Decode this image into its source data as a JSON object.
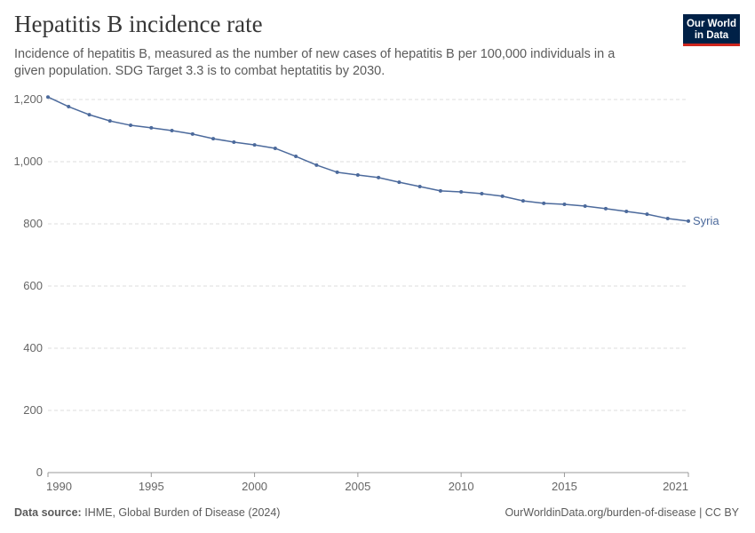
{
  "chart_data": {
    "type": "line",
    "title": "Hepatitis B incidence rate",
    "subtitle": "Incidence of hepatitis B, measured as the number of new cases of hepatitis B per 100,000 individuals in a given population. SDG Target 3.3 is to combat heptatitis by 2030.",
    "source_label": "Data source:",
    "source": "IHME, Global Burden of Disease (2024)",
    "url_license": "OurWorldinData.org/burden-of-disease | CC BY",
    "logo": [
      "Our World",
      "in Data"
    ],
    "x": [
      1990,
      1991,
      1992,
      1993,
      1994,
      1995,
      1996,
      1997,
      1998,
      1999,
      2000,
      2001,
      2002,
      2003,
      2004,
      2005,
      2006,
      2007,
      2008,
      2009,
      2010,
      2011,
      2012,
      2013,
      2014,
      2015,
      2016,
      2017,
      2018,
      2019,
      2020,
      2021
    ],
    "series": [
      {
        "name": "Syria",
        "color": "#4c6a9c",
        "values": [
          1208,
          1177,
          1151,
          1131,
          1117,
          1109,
          1100,
          1089,
          1074,
          1063,
          1054,
          1043,
          1017,
          989,
          966,
          957,
          949,
          934,
          920,
          906,
          903,
          897,
          889,
          874,
          866,
          863,
          857,
          849,
          840,
          831,
          817,
          809
        ]
      }
    ],
    "xlim": [
      1990,
      2021
    ],
    "xticks": [
      1990,
      1995,
      2000,
      2005,
      2010,
      2015,
      2021
    ],
    "ylim": [
      0,
      1200
    ],
    "yticks": [
      0,
      200,
      400,
      600,
      800,
      {
        "value": 1000,
        "label": "1,000"
      },
      {
        "value": 1200,
        "label": "1,200"
      }
    ],
    "grid": true
  }
}
